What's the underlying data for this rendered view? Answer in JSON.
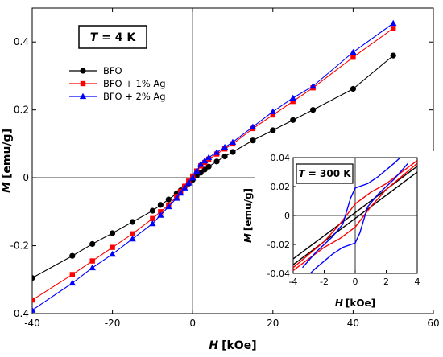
{
  "chart_data": [
    {
      "type": "line",
      "xlabel_var": "H",
      "xlabel_unit": "[kOe]",
      "ylabel_var": "M",
      "ylabel_unit": "[emu/g]",
      "xlim": [
        -40,
        60
      ],
      "ylim": [
        -0.4,
        0.5
      ],
      "xticks": [
        -40,
        -20,
        0,
        20,
        40,
        60
      ],
      "yticks": [
        -0.4,
        -0.2,
        0,
        0.2,
        0.4
      ],
      "temperature_var": "T",
      "temperature_value": " = 4 K",
      "legend_position": "upper-left",
      "series": [
        {
          "name": "BFO",
          "color": "#000000",
          "marker": "circle",
          "x": [
            -40,
            -30,
            -25,
            -20,
            -15,
            -10,
            -8,
            -6,
            -4,
            -3,
            -2,
            -1,
            0,
            1,
            2,
            3,
            4,
            6,
            8,
            10,
            15,
            20,
            25,
            30,
            40,
            50
          ],
          "y": [
            -0.295,
            -0.23,
            -0.195,
            -0.163,
            -0.13,
            -0.097,
            -0.08,
            -0.064,
            -0.046,
            -0.037,
            -0.027,
            -0.017,
            -0.006,
            0.006,
            0.015,
            0.024,
            0.033,
            0.048,
            0.063,
            0.076,
            0.11,
            0.14,
            0.17,
            0.2,
            0.262,
            0.36
          ]
        },
        {
          "name": "BFO + 1% Ag",
          "color": "#ff0000",
          "marker": "square",
          "x": [
            -40,
            -30,
            -25,
            -20,
            -15,
            -10,
            -8,
            -6,
            -4,
            -3,
            -2,
            -1,
            0,
            1,
            2,
            3,
            4,
            6,
            8,
            10,
            15,
            20,
            25,
            30,
            40,
            50
          ],
          "y": [
            -0.36,
            -0.285,
            -0.245,
            -0.205,
            -0.165,
            -0.12,
            -0.1,
            -0.08,
            -0.055,
            -0.04,
            -0.025,
            -0.01,
            0.005,
            0.02,
            0.035,
            0.045,
            0.055,
            0.07,
            0.085,
            0.1,
            0.145,
            0.185,
            0.225,
            0.265,
            0.355,
            0.44
          ]
        },
        {
          "name": "BFO + 2% Ag",
          "color": "#0000ff",
          "marker": "triangle",
          "x": [
            -40,
            -30,
            -25,
            -20,
            -15,
            -10,
            -8,
            -6,
            -4,
            -3,
            -2,
            -1,
            0,
            1,
            2,
            3,
            4,
            6,
            8,
            10,
            15,
            20,
            25,
            30,
            40,
            50
          ],
          "y": [
            -0.39,
            -0.31,
            -0.265,
            -0.225,
            -0.18,
            -0.135,
            -0.11,
            -0.085,
            -0.06,
            -0.045,
            -0.03,
            -0.015,
            0.0,
            0.02,
            0.04,
            0.05,
            0.06,
            0.075,
            0.09,
            0.105,
            0.15,
            0.195,
            0.235,
            0.27,
            0.37,
            0.455
          ]
        }
      ]
    },
    {
      "type": "line",
      "xlabel_var": "H",
      "xlabel_unit": "[kOe]",
      "ylabel_var": "M",
      "ylabel_unit": "[emu/g]",
      "xlim": [
        -4,
        4
      ],
      "ylim": [
        -0.04,
        0.04
      ],
      "xticks": [
        -4,
        -2,
        0,
        2,
        4
      ],
      "yticks": [
        -0.04,
        -0.02,
        0,
        0.02,
        0.04
      ],
      "temperature_var": "T",
      "temperature_value": " = 300 K",
      "series": [
        {
          "name": "BFO",
          "color": "#000000",
          "branches": [
            {
              "x": [
                -4,
                4
              ],
              "y": [
                -0.034,
                0.03
              ]
            },
            {
              "x": [
                -4,
                4
              ],
              "y": [
                -0.03,
                0.034
              ]
            }
          ]
        },
        {
          "name": "BFO + 1% Ag",
          "color": "#ff0000",
          "branches": [
            {
              "x": [
                -4,
                -2,
                -1,
                0,
                1,
                2,
                4
              ],
              "y": [
                -0.038,
                -0.022,
                -0.016,
                -0.008,
                0.006,
                0.018,
                0.036
              ]
            },
            {
              "x": [
                -4,
                -2,
                -1,
                0,
                1,
                2,
                4
              ],
              "y": [
                -0.036,
                -0.018,
                -0.006,
                0.008,
                0.016,
                0.022,
                0.038
              ]
            }
          ]
        },
        {
          "name": "BFO + 2% Ag",
          "color": "#0000ff",
          "branches": [
            {
              "x": [
                -3.4,
                -2.5,
                -1.5,
                -0.8,
                0,
                0.3,
                0.8,
                1.5,
                2.5,
                3.4
              ],
              "y": [
                -0.045,
                -0.036,
                -0.027,
                -0.022,
                -0.019,
                -0.012,
                0.006,
                0.015,
                0.025,
                0.036
              ]
            },
            {
              "x": [
                -3.4,
                -2.5,
                -1.5,
                -0.8,
                -0.3,
                0,
                0.8,
                1.5,
                2.5,
                3.4
              ],
              "y": [
                -0.036,
                -0.025,
                -0.015,
                -0.006,
                0.012,
                0.019,
                0.022,
                0.027,
                0.036,
                0.045
              ]
            }
          ]
        }
      ]
    }
  ]
}
